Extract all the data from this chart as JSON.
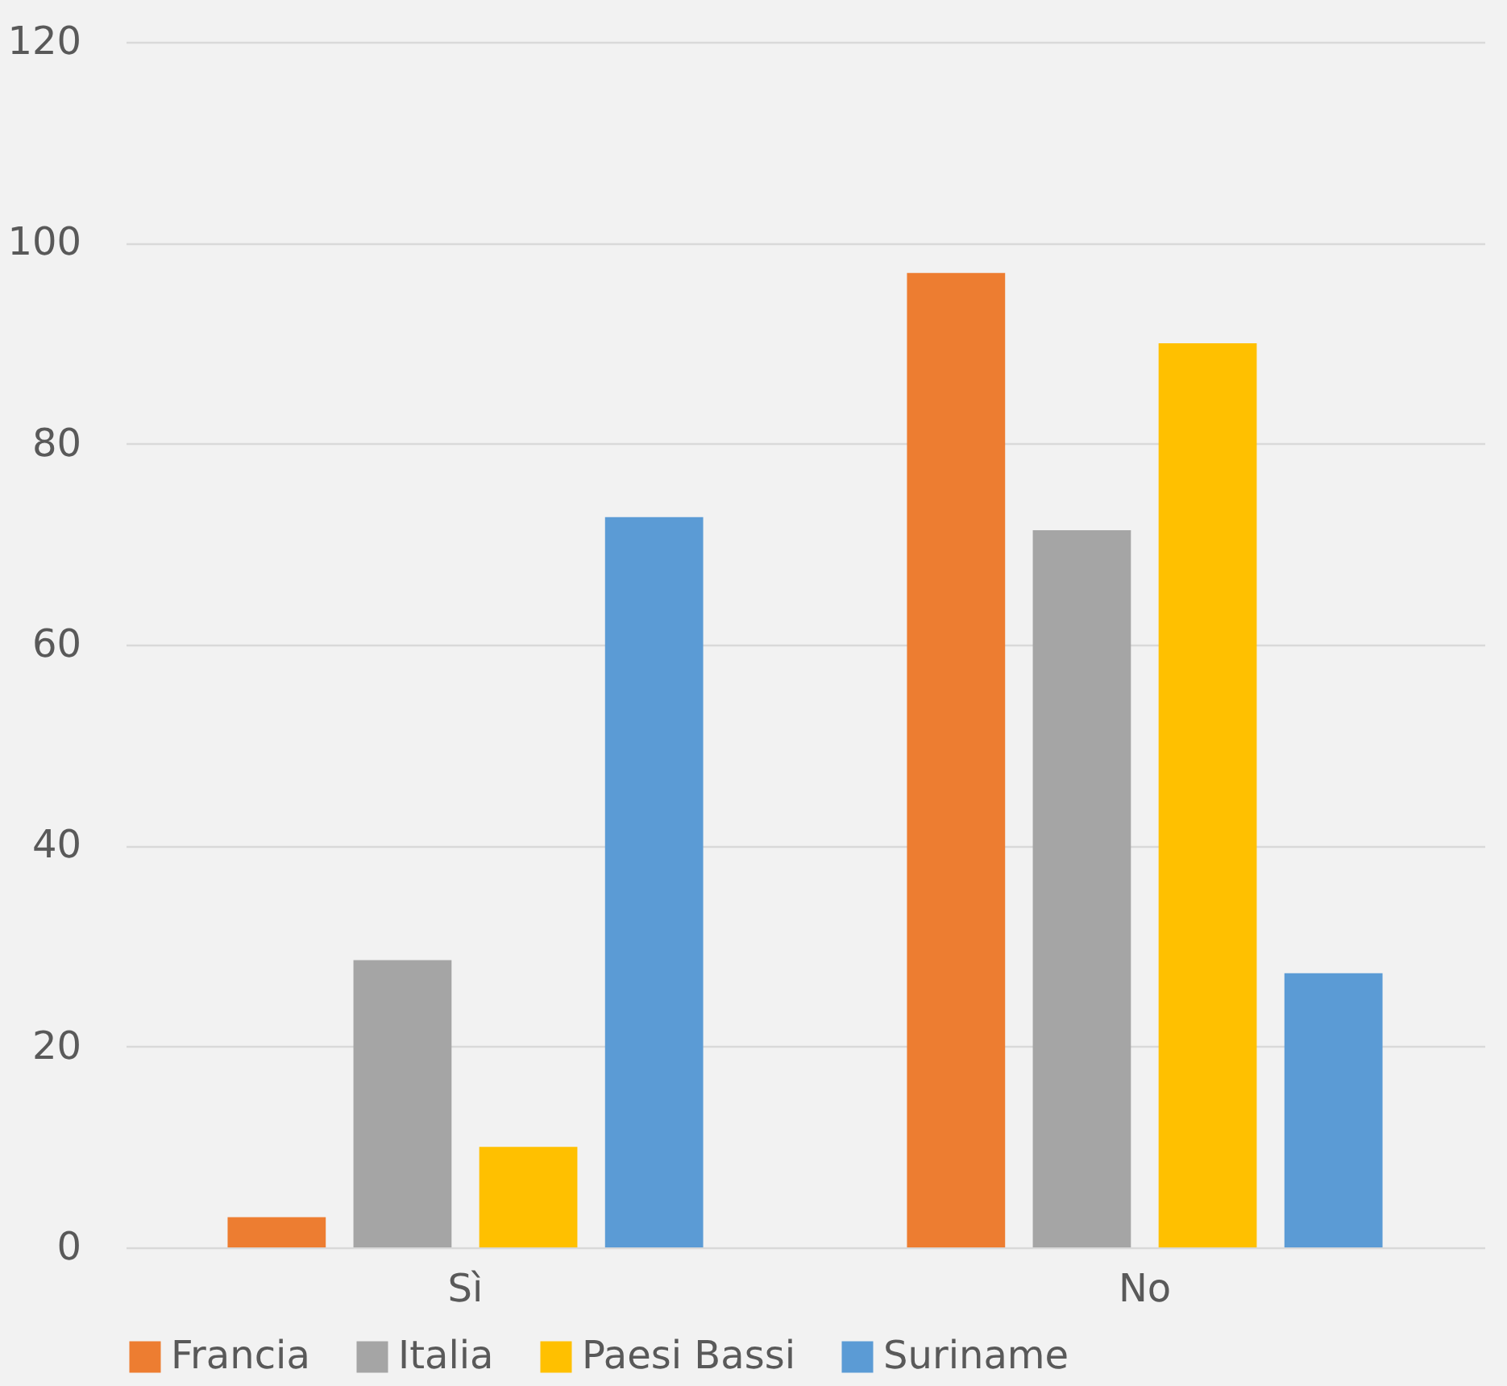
{
  "chart_data": {
    "type": "bar",
    "categories": [
      "Sì",
      "No"
    ],
    "series": [
      {
        "name": "Francia",
        "color": "#ed7d31",
        "values": [
          3,
          97
        ]
      },
      {
        "name": "Italia",
        "color": "#a5a5a5",
        "values": [
          28.6,
          71.4
        ]
      },
      {
        "name": "Paesi Bassi",
        "color": "#ffc000",
        "values": [
          10,
          90
        ]
      },
      {
        "name": "Suriname",
        "color": "#5b9bd5",
        "values": [
          72.7,
          27.3
        ]
      }
    ],
    "ylim": [
      0,
      120
    ],
    "yticks": [
      0,
      20,
      40,
      60,
      80,
      100,
      120
    ],
    "grid": "y",
    "legend": "bottom"
  }
}
